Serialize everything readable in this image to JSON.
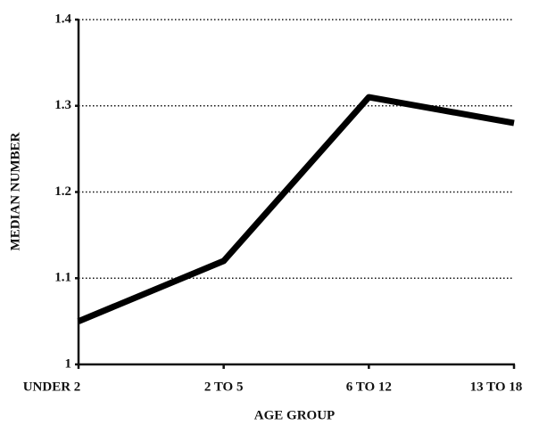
{
  "chart_data": {
    "type": "line",
    "x_label": "AGE GROUP",
    "y_label": "MEDIAN NUMBER",
    "categories": [
      "UNDER 2",
      "2 TO 5",
      "6 TO 12",
      "13 TO 18"
    ],
    "values": [
      1.05,
      1.12,
      1.31,
      1.28
    ],
    "color": "#000000",
    "ylim": [
      1,
      1.4
    ],
    "yticks": [
      1,
      1.1,
      1.2,
      1.3,
      1.4
    ],
    "grid": true
  }
}
